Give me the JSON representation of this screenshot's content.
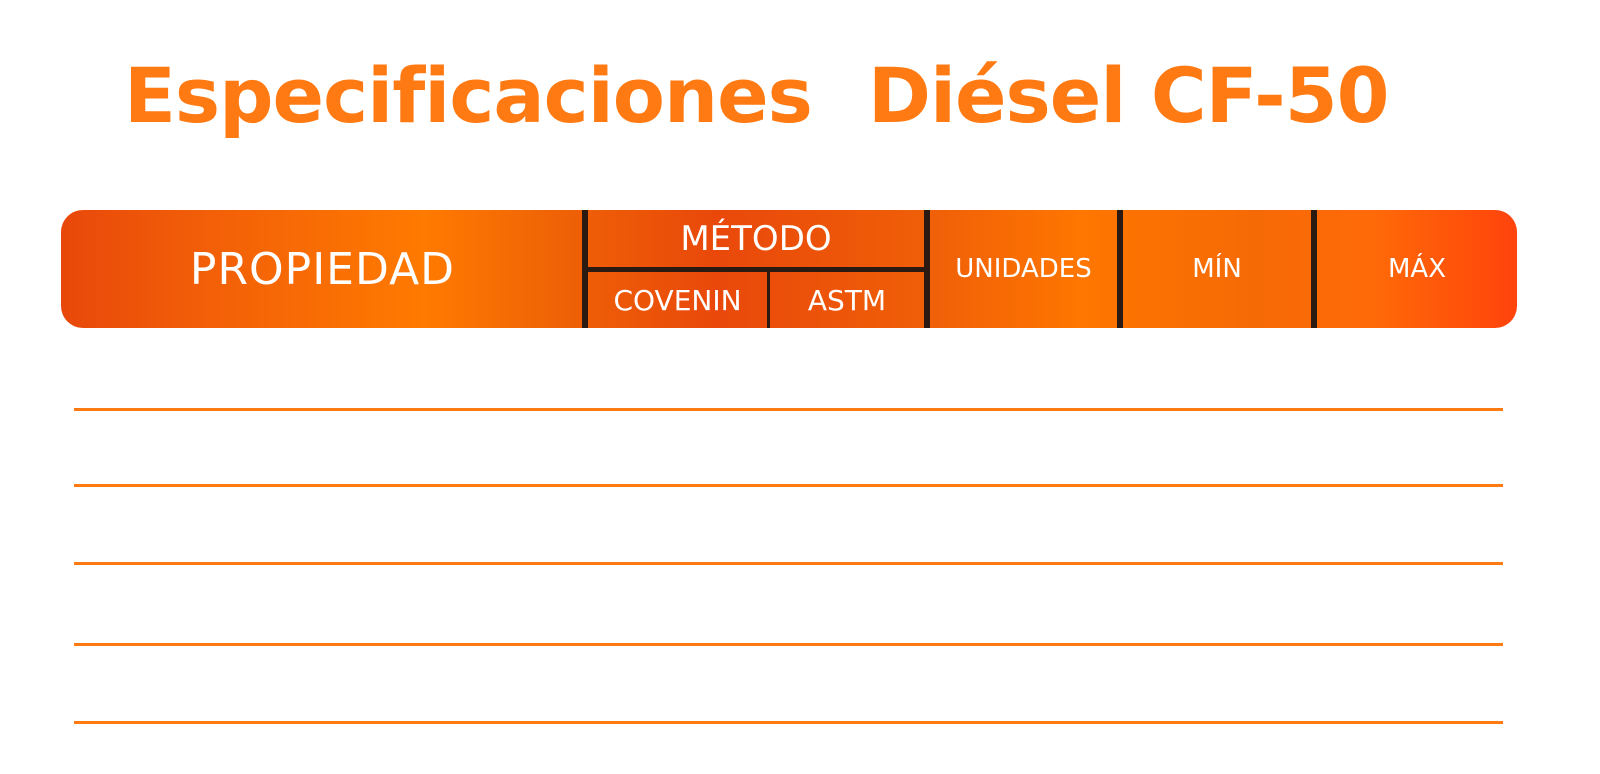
{
  "document": {
    "title_part1": "Especificaciones",
    "title_part2": "Diésel CF-50"
  },
  "table": {
    "headers": {
      "propiedad": "PROPIEDAD",
      "metodo": "MÉTODO",
      "covenin": "COVENIN",
      "astm": "ASTM",
      "unidades": "UNIDADES",
      "min": "MÍN",
      "max": "MÁX"
    },
    "rows": []
  },
  "colors": {
    "accent": "#ff7a12",
    "header_dark": "#e8480a",
    "header_light": "#ff7a00",
    "divider": "#2a1a12"
  }
}
